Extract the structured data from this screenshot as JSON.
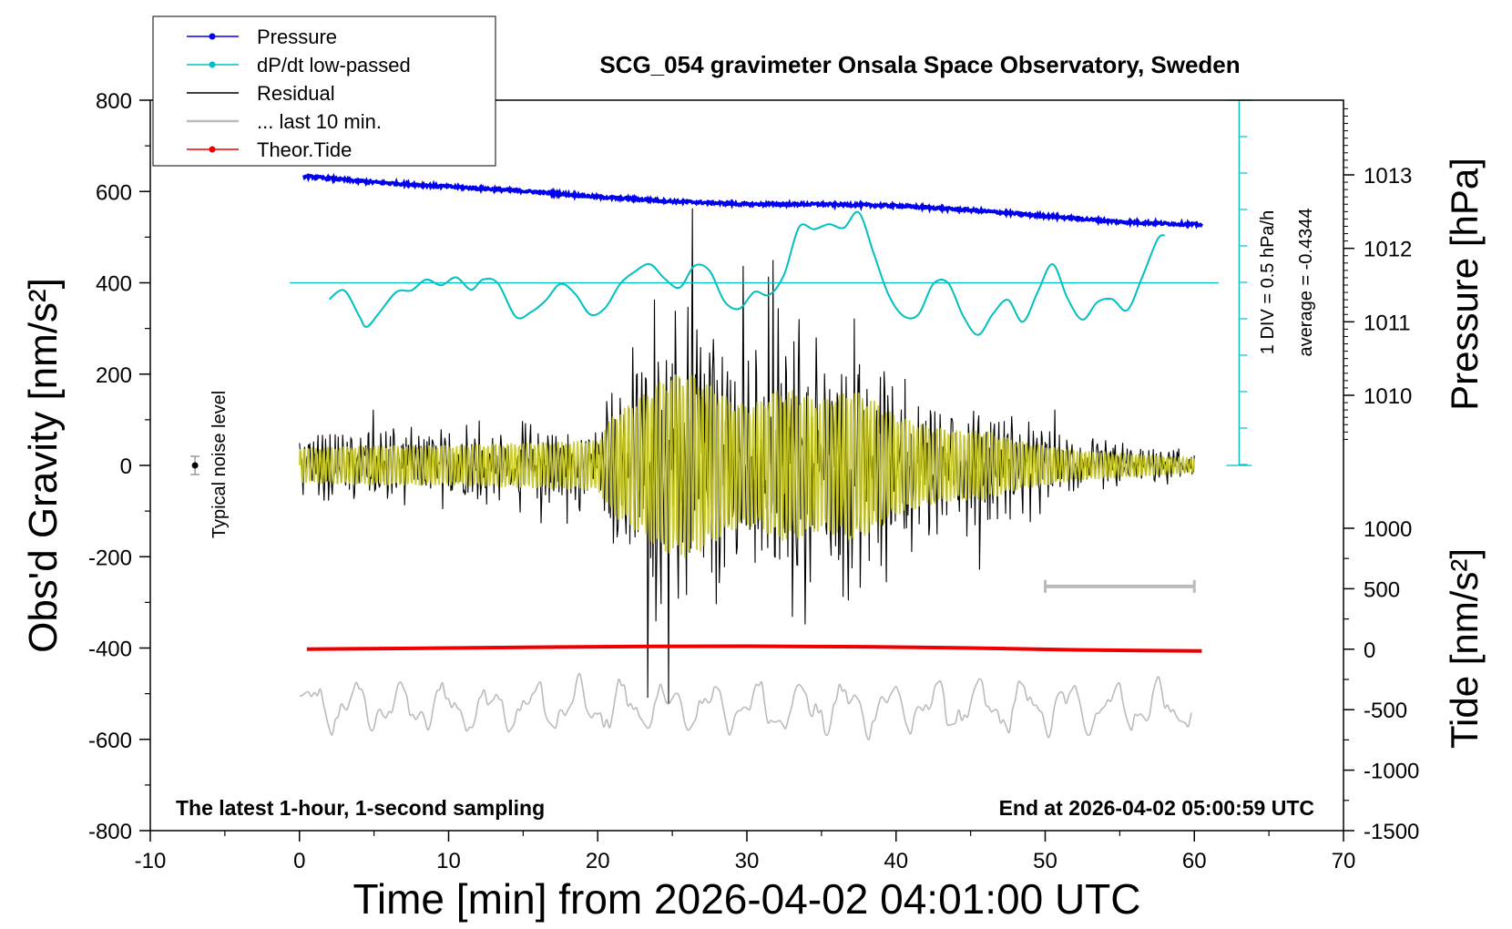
{
  "chart_data": {
    "type": "line",
    "title": "SCG_054 gravimeter Onsala Space Observatory, Sweden",
    "xlabel": "Time [min] from 2026-04-02 04:01:00 UTC",
    "ylabel_left": "Obs'd Gravity [nm/s²]",
    "ylabel_right_pressure": "Pressure [hPa]",
    "ylabel_right_tide": "Tide [nm/s²]",
    "xlim": [
      -10,
      70
    ],
    "ylim_left": [
      -800,
      800
    ],
    "xticks": [
      "-10",
      "0",
      "10",
      "20",
      "30",
      "40",
      "50",
      "60",
      "70"
    ],
    "yticks_left": [
      "800",
      "600",
      "400",
      "200",
      "0",
      "-200",
      "-400",
      "-600",
      "-800"
    ],
    "pressure_ticks": [
      "1013",
      "1012",
      "1011",
      "1010"
    ],
    "tide_ticks": [
      "1000",
      "500",
      "0",
      "-500",
      "-1000",
      "-1500"
    ],
    "bottom_left_note": "The latest 1-hour, 1-second sampling",
    "bottom_right_note": "End at 2026-04-02 05:00:59 UTC",
    "noise_label": "Typical noise level",
    "dpdt_div_label": "1 DIV = 0.5 hPa/h",
    "dpdt_average_label": "average = -0.4344",
    "legend": [
      {
        "label": "Pressure",
        "color": "#0000ee",
        "marker": true
      },
      {
        "label": "dP/dt low-passed",
        "color": "#00c0c0",
        "marker": true
      },
      {
        "label": "Residual",
        "color": "#000000",
        "marker": false
      },
      {
        "label": "... last 10 min.",
        "color": "#bbbbbb",
        "marker": false
      },
      {
        "label": "Theor.Tide",
        "color": "#ee0000",
        "marker": true
      }
    ],
    "series": [
      {
        "name": "Pressure",
        "color": "#0000ee",
        "unit": "hPa",
        "x": [
          0.3,
          5,
          10,
          15,
          20,
          25,
          30,
          35,
          40,
          45,
          50,
          55,
          60.5
        ],
        "y": [
          1012.98,
          1012.9,
          1012.84,
          1012.78,
          1012.7,
          1012.64,
          1012.6,
          1012.6,
          1012.58,
          1012.52,
          1012.44,
          1012.36,
          1012.32
        ]
      },
      {
        "name": "dP/dt low-passed",
        "color": "#00c0c0",
        "unit": "hPa/h",
        "baseline": -0.4344,
        "x": [
          2,
          3,
          4,
          4.5,
          5.3,
          6.5,
          7.5,
          8.5,
          9.5,
          10.5,
          11.5,
          12.3,
          13.3,
          14.5,
          15.5,
          16.5,
          17.5,
          18.5,
          19.5,
          20.5,
          21.5,
          22.5,
          23.5,
          24.5,
          25.5,
          26.5,
          27.5,
          28.5,
          29.5,
          30.5,
          31.5,
          32.5,
          33.5,
          34.5,
          35.5,
          36.5,
          37.5,
          38.5,
          39.5,
          40.5,
          41.5,
          42.5,
          43.5,
          44.5,
          45.5,
          46.5,
          47.5,
          48.5,
          49.5,
          50.5,
          51.5,
          52.5,
          53.5,
          54.5,
          55.5,
          56.5,
          57.5,
          58
        ],
        "y": [
          -0.66,
          -0.54,
          -0.89,
          -1.04,
          -0.86,
          -0.56,
          -0.54,
          -0.39,
          -0.47,
          -0.36,
          -0.53,
          -0.39,
          -0.44,
          -0.9,
          -0.84,
          -0.68,
          -0.45,
          -0.59,
          -0.87,
          -0.78,
          -0.45,
          -0.28,
          -0.18,
          -0.38,
          -0.5,
          -0.2,
          -0.27,
          -0.69,
          -0.79,
          -0.56,
          -0.6,
          -0.32,
          0.33,
          0.3,
          0.37,
          0.32,
          0.53,
          -0.03,
          -0.6,
          -0.89,
          -0.87,
          -0.45,
          -0.44,
          -0.89,
          -1.15,
          -0.86,
          -0.67,
          -0.97,
          -0.56,
          -0.18,
          -0.65,
          -0.94,
          -0.7,
          -0.66,
          -0.81,
          -0.36,
          0.15,
          0.22
        ]
      },
      {
        "name": "Residual",
        "color": "#000000",
        "unit": "nm/s²",
        "x": [
          0,
          5,
          10,
          15,
          20,
          21,
          22,
          23,
          24,
          25,
          26,
          27,
          28,
          29,
          30,
          31,
          32,
          33,
          34,
          35,
          36,
          37,
          38,
          40,
          42,
          44,
          46,
          48,
          50,
          52,
          55,
          60
        ],
        "y_envelope": [
          70,
          80,
          80,
          90,
          100,
          200,
          240,
          280,
          330,
          360,
          370,
          340,
          300,
          260,
          240,
          260,
          300,
          300,
          280,
          260,
          280,
          300,
          280,
          200,
          160,
          140,
          140,
          100,
          80,
          60,
          50,
          30
        ]
      },
      {
        "name": "... last 10 min.",
        "color": "#bbbbbb",
        "unit": "nm/s²",
        "x_range": [
          50,
          60
        ],
        "center": -530,
        "amplitude": 70
      },
      {
        "name": "Theor.Tide",
        "color": "#ee0000",
        "unit": "nm/s²",
        "x": [
          0.5,
          10,
          20,
          30,
          38,
          45,
          52,
          60.5
        ],
        "y": [
          0,
          10,
          20,
          25,
          20,
          10,
          -5,
          -15
        ]
      }
    ]
  }
}
